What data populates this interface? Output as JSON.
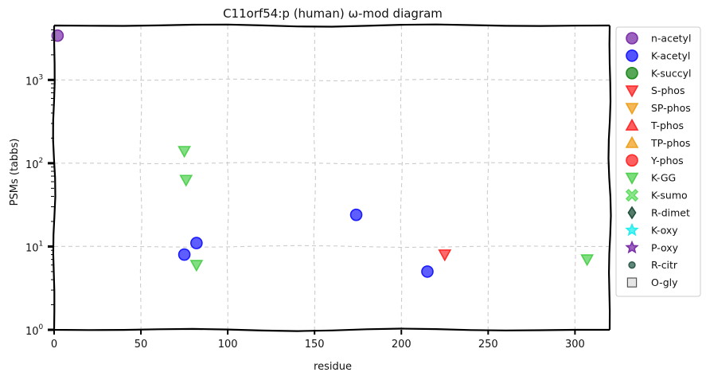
{
  "chart_data": {
    "type": "scatter",
    "title": "C11orf54:p (human) ω-mod diagram",
    "xlabel": "residue",
    "ylabel": "PSMs (tabbs)",
    "y_scale": "log",
    "xlim": [
      0,
      320
    ],
    "ylim": [
      1,
      4500
    ],
    "x_ticks": [
      0,
      50,
      100,
      150,
      200,
      250,
      300
    ],
    "y_ticks": [
      {
        "value": 1,
        "label": "10",
        "exp": "0"
      },
      {
        "value": 10,
        "label": "10",
        "exp": "1"
      },
      {
        "value": 100,
        "label": "10",
        "exp": "2"
      },
      {
        "value": 1000,
        "label": "10",
        "exp": "3"
      }
    ],
    "grid": true,
    "legend_position": "right, outside plot",
    "series": [
      {
        "name": "n-acetyl",
        "marker": "circle",
        "color": "#7b2fa8",
        "points": [
          {
            "x": 2,
            "y": 3400
          }
        ]
      },
      {
        "name": "K-acetyl",
        "marker": "circle",
        "color": "#1a1aff",
        "points": [
          {
            "x": 75,
            "y": 8
          },
          {
            "x": 82,
            "y": 11
          },
          {
            "x": 174,
            "y": 24
          },
          {
            "x": 215,
            "y": 5
          }
        ]
      },
      {
        "name": "K-succyl",
        "marker": "circle",
        "color": "#1f8a1f",
        "points": []
      },
      {
        "name": "S-phos",
        "marker": "triangle-down",
        "color": "#ff2a2a",
        "points": [
          {
            "x": 225,
            "y": 8
          }
        ]
      },
      {
        "name": "SP-phos",
        "marker": "triangle-down",
        "color": "#f0a020",
        "points": []
      },
      {
        "name": "T-phos",
        "marker": "triangle-up",
        "color": "#ff2a2a",
        "points": []
      },
      {
        "name": "TP-phos",
        "marker": "triangle-up",
        "color": "#f0a020",
        "points": []
      },
      {
        "name": "Y-phos",
        "marker": "circle",
        "color": "#ff2a2a",
        "points": []
      },
      {
        "name": "K-GG",
        "marker": "triangle-down",
        "color": "#4fd04f",
        "points": [
          {
            "x": 75,
            "y": 140
          },
          {
            "x": 76,
            "y": 63
          },
          {
            "x": 82,
            "y": 6
          },
          {
            "x": 307,
            "y": 7
          }
        ]
      },
      {
        "name": "K-sumo",
        "marker": "x",
        "color": "#66dd66",
        "points": []
      },
      {
        "name": "R-dimet",
        "marker": "diamond",
        "color": "#1c4f3a",
        "points": []
      },
      {
        "name": "K-oxy",
        "marker": "star",
        "color": "#22eeee",
        "points": []
      },
      {
        "name": "P-oxy",
        "marker": "star",
        "color": "#7b2fa8",
        "points": []
      },
      {
        "name": "R-citr",
        "marker": "small-circle",
        "color": "#2f5e4e",
        "points": []
      },
      {
        "name": "O-gly",
        "marker": "square",
        "color": "#dddddd",
        "points": []
      }
    ]
  }
}
